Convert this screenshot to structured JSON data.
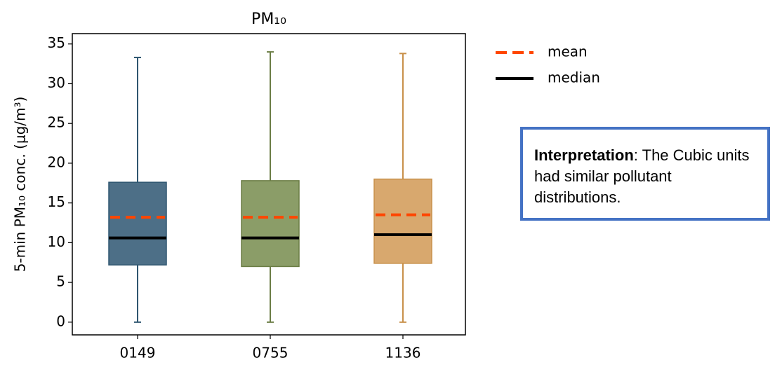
{
  "chart_data": {
    "type": "box",
    "title": "PM₁₀",
    "y_label": "5-min PM₁₀ conc. (μg/m³)",
    "categories": [
      "0149",
      "0755",
      "1136"
    ],
    "boxes": [
      {
        "whislo": 0,
        "q1": 7.2,
        "med": 10.6,
        "mean": 13.2,
        "q3": 17.6,
        "whishi": 33.3,
        "color": "#4d6f87",
        "edge": "#2f5670"
      },
      {
        "whislo": 0,
        "q1": 7.0,
        "med": 10.6,
        "mean": 13.2,
        "q3": 17.8,
        "whishi": 34.0,
        "color": "#8b9d68",
        "edge": "#6b7d45"
      },
      {
        "whislo": 0,
        "q1": 7.4,
        "med": 11.0,
        "mean": 13.5,
        "q3": 18.0,
        "whishi": 33.8,
        "color": "#d8a86e",
        "edge": "#c8904a"
      }
    ],
    "mean_line": {
      "name": "mean",
      "color": "#ff4500"
    },
    "median_line": {
      "name": "median",
      "color": "#000000"
    },
    "ylim": [
      -1.6,
      36.3
    ],
    "yticks": [
      0,
      5,
      10,
      15,
      20,
      25,
      30,
      35
    ],
    "annotation": {
      "bold": "Interpretation",
      "text": ": The Cubic units had similar pollutant distributions."
    }
  }
}
